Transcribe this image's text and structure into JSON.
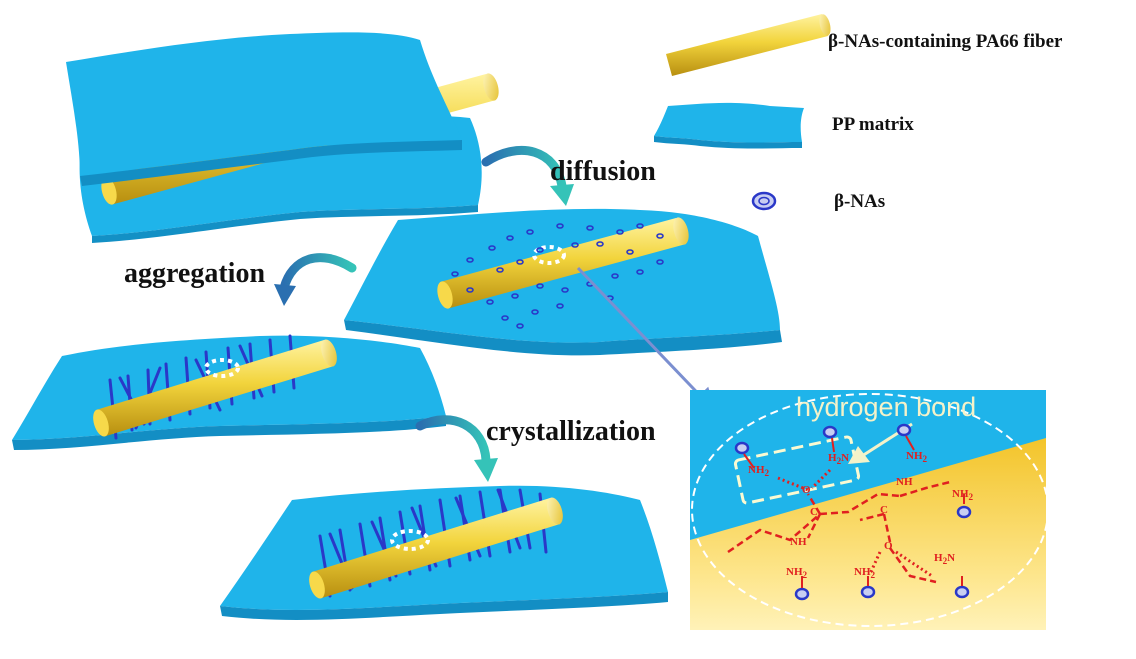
{
  "legend": {
    "fiber": "β-NAs-containing PA66 fiber",
    "matrix": "PP matrix",
    "nas": "β-NAs"
  },
  "steps": {
    "diffusion": "diffusion",
    "aggregation": "aggregation",
    "crystallization": "crystallization"
  },
  "inset": {
    "title": "hydrogen bond",
    "chem": {
      "nh2_a": "NH",
      "h2n_a": "H",
      "nh2_b": "NH",
      "nh_1": "NH",
      "nh_2": "NH",
      "c_1": "C",
      "c_2": "C",
      "o_1": "O",
      "o_2": "O",
      "nh2_c": "NH",
      "nh2_d": "NH",
      "nh2_e": "NH",
      "h2n_b": "H"
    }
  },
  "colors": {
    "matrix": "#1fb4ea",
    "fiber": "#f2d43c",
    "nas": "#2a38c8",
    "chem": "#e02020",
    "arrow": "#2aa8c8"
  }
}
